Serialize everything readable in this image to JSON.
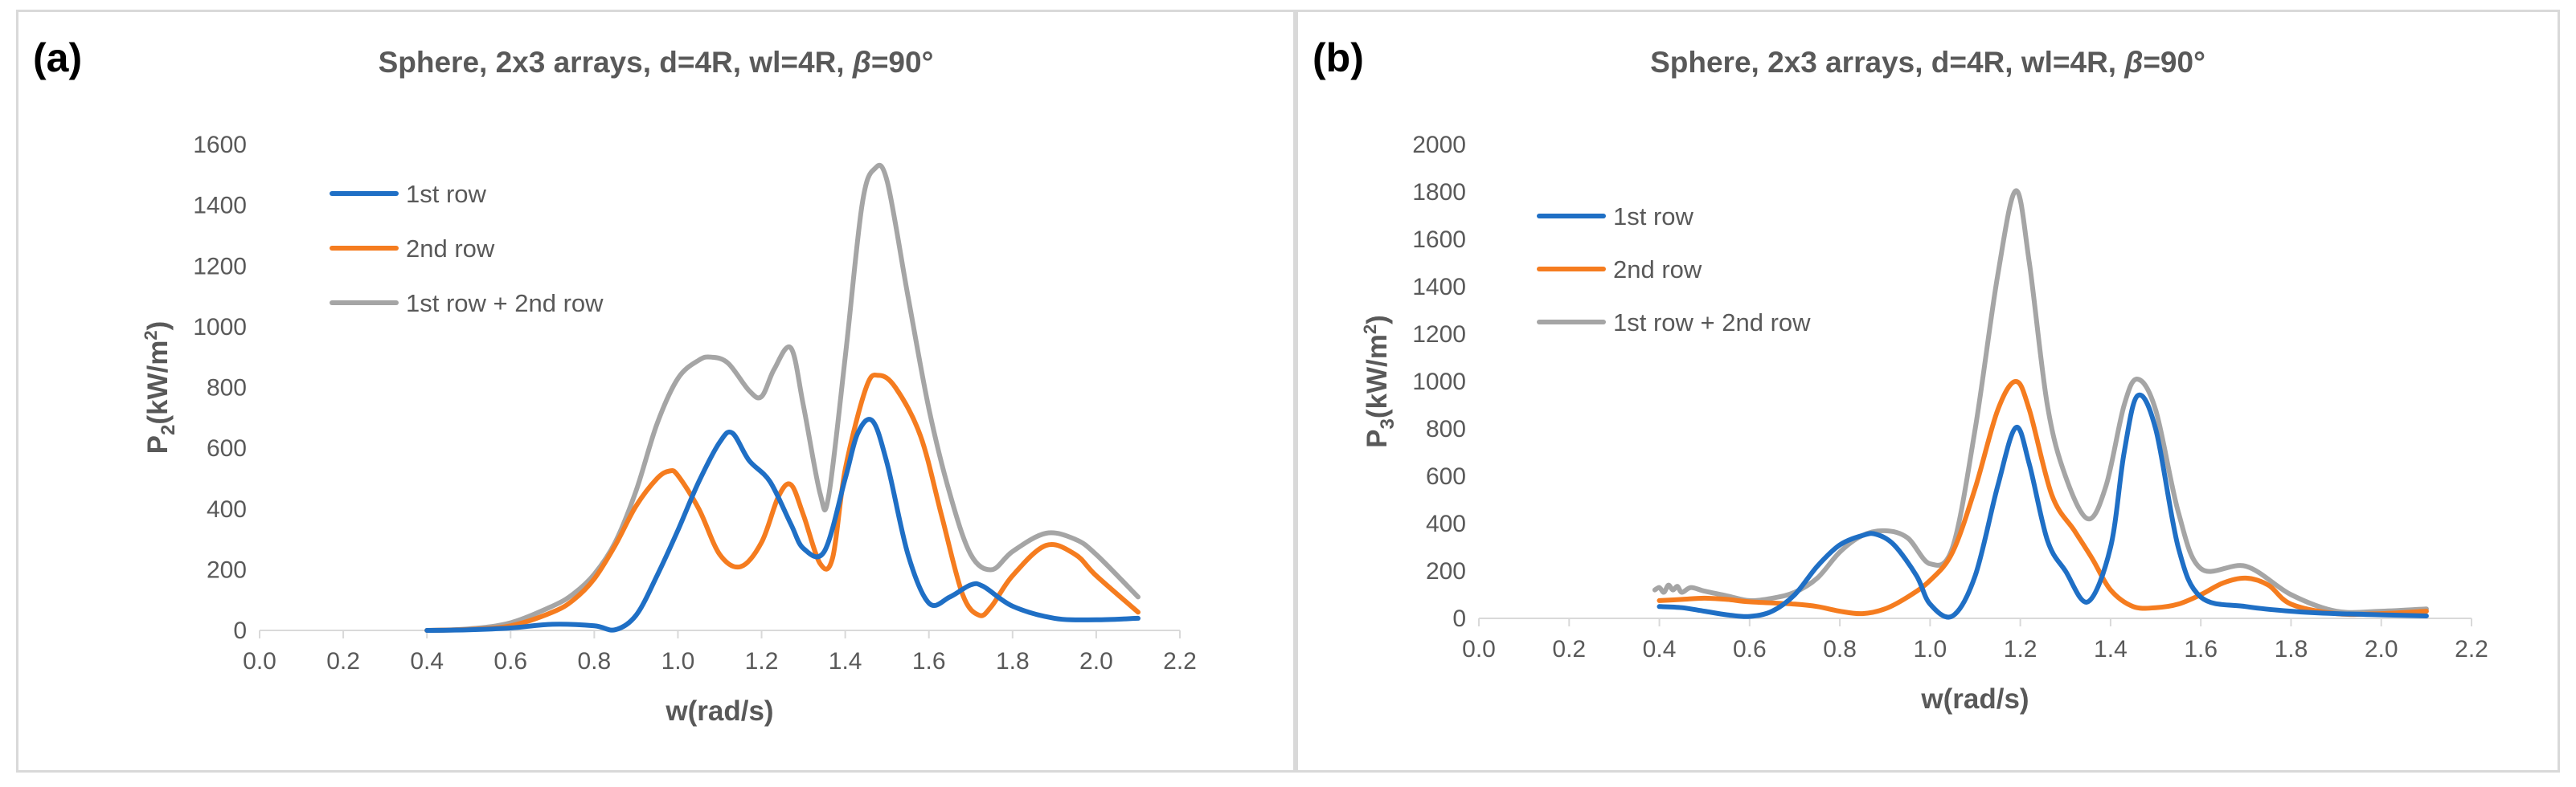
{
  "chart_data": [
    {
      "panel_label": "(a)",
      "type": "line",
      "title_prefix": "Sphere, 2x3 arrays, d=4R, wl=4R, ",
      "title_beta": "β",
      "title_suffix": "=90°",
      "xlabel": "w(rad/s)",
      "ylabel_main": "P",
      "ylabel_sub": "2",
      "ylabel_unit_open": "(kW/m",
      "ylabel_unit_sup": "2",
      "ylabel_unit_close": ")",
      "xlim": [
        0,
        2.2
      ],
      "ylim": [
        0,
        1600
      ],
      "xticks": [
        0,
        0.2,
        0.4,
        0.6,
        0.8,
        1.0,
        1.2,
        1.4,
        1.6,
        1.8,
        2.0,
        2.2
      ],
      "xtick_labels": [
        "0.0",
        "0.2",
        "0.4",
        "0.6",
        "0.8",
        "1.0",
        "1.2",
        "1.4",
        "1.6",
        "1.8",
        "2.0",
        "2.2"
      ],
      "yticks": [
        0,
        200,
        400,
        600,
        800,
        1000,
        1200,
        1400,
        1600
      ],
      "ytick_labels": [
        "0",
        "200",
        "400",
        "600",
        "800",
        "1000",
        "1200",
        "1400",
        "1600"
      ],
      "grid": "none",
      "legend_position": "top-left",
      "series": [
        {
          "name": "1st row",
          "color": "#1f6fc5",
          "x": [
            0.4,
            0.5,
            0.6,
            0.7,
            0.8,
            0.85,
            0.9,
            0.95,
            1.0,
            1.05,
            1.1,
            1.13,
            1.17,
            1.22,
            1.27,
            1.3,
            1.35,
            1.4,
            1.43,
            1.465,
            1.5,
            1.55,
            1.6,
            1.65,
            1.7,
            1.73,
            1.8,
            1.9,
            2.0,
            2.1
          ],
          "y": [
            0,
            2,
            8,
            20,
            15,
            2,
            50,
            180,
            330,
            490,
            620,
            650,
            560,
            490,
            350,
            270,
            260,
            500,
            650,
            690,
            550,
            250,
            90,
            110,
            150,
            145,
            80,
            40,
            35,
            40
          ]
        },
        {
          "name": "2nd row",
          "color": "#f57c1f",
          "x": [
            0.4,
            0.5,
            0.6,
            0.7,
            0.75,
            0.8,
            0.85,
            0.9,
            0.95,
            0.98,
            1.0,
            1.05,
            1.1,
            1.15,
            1.2,
            1.24,
            1.27,
            1.3,
            1.34,
            1.37,
            1.4,
            1.45,
            1.48,
            1.52,
            1.58,
            1.63,
            1.68,
            1.72,
            1.75,
            1.8,
            1.88,
            1.95,
            2.0,
            2.1
          ],
          "y": [
            0,
            3,
            15,
            60,
            100,
            170,
            280,
            410,
            500,
            525,
            510,
            400,
            250,
            210,
            290,
            440,
            480,
            380,
            220,
            240,
            530,
            800,
            840,
            800,
            640,
            380,
            120,
            50,
            80,
            180,
            280,
            250,
            180,
            60
          ]
        },
        {
          "name": "1st row + 2nd row",
          "color": "#a5a5a5",
          "x": [
            0.4,
            0.5,
            0.6,
            0.7,
            0.75,
            0.8,
            0.85,
            0.9,
            0.95,
            1.0,
            1.05,
            1.08,
            1.12,
            1.17,
            1.2,
            1.23,
            1.27,
            1.3,
            1.34,
            1.36,
            1.4,
            1.44,
            1.47,
            1.5,
            1.55,
            1.6,
            1.65,
            1.7,
            1.75,
            1.8,
            1.88,
            1.95,
            2.0,
            2.1
          ],
          "y": [
            0,
            5,
            25,
            80,
            120,
            185,
            290,
            460,
            680,
            830,
            890,
            900,
            880,
            790,
            770,
            860,
            930,
            740,
            450,
            440,
            900,
            1400,
            1520,
            1480,
            1100,
            730,
            450,
            250,
            200,
            260,
            320,
            300,
            250,
            110
          ]
        }
      ]
    },
    {
      "panel_label": "(b)",
      "type": "line",
      "title_prefix": "Sphere, 2x3 arrays, d=4R, wl=4R, ",
      "title_beta": "β",
      "title_suffix": "=90°",
      "xlabel": "w(rad/s)",
      "ylabel_main": "P",
      "ylabel_sub": "3",
      "ylabel_unit_open": "(kW/m",
      "ylabel_unit_sup": "2",
      "ylabel_unit_close": ")",
      "xlim": [
        0,
        2.2
      ],
      "ylim": [
        0,
        2000
      ],
      "xticks": [
        0,
        0.2,
        0.4,
        0.6,
        0.8,
        1.0,
        1.2,
        1.4,
        1.6,
        1.8,
        2.0,
        2.2
      ],
      "xtick_labels": [
        "0.0",
        "0.2",
        "0.4",
        "0.6",
        "0.8",
        "1.0",
        "1.2",
        "1.4",
        "1.6",
        "1.8",
        "2.0",
        "2.2"
      ],
      "yticks": [
        0,
        200,
        400,
        600,
        800,
        1000,
        1200,
        1400,
        1600,
        1800,
        2000
      ],
      "ytick_labels": [
        "0",
        "200",
        "400",
        "600",
        "800",
        "1000",
        "1200",
        "1400",
        "1600",
        "1800",
        "2000"
      ],
      "grid": "none",
      "legend_position": "top-left",
      "series": [
        {
          "name": "1st row",
          "color": "#1f6fc5",
          "x": [
            0.4,
            0.45,
            0.5,
            0.55,
            0.6,
            0.65,
            0.7,
            0.75,
            0.8,
            0.85,
            0.88,
            0.92,
            0.97,
            1.0,
            1.05,
            1.1,
            1.15,
            1.19,
            1.22,
            1.26,
            1.3,
            1.35,
            1.4,
            1.43,
            1.46,
            1.5,
            1.55,
            1.6,
            1.7,
            1.8,
            1.9,
            2.0,
            2.1
          ],
          "y": [
            50,
            45,
            30,
            15,
            8,
            30,
            100,
            220,
            310,
            350,
            355,
            310,
            180,
            60,
            10,
            180,
            560,
            805,
            650,
            330,
            200,
            70,
            300,
            700,
            940,
            800,
            300,
            90,
            50,
            30,
            20,
            15,
            10
          ]
        },
        {
          "name": "2nd row",
          "color": "#f57c1f",
          "x": [
            0.4,
            0.45,
            0.5,
            0.55,
            0.6,
            0.7,
            0.75,
            0.8,
            0.85,
            0.9,
            0.95,
            1.0,
            1.05,
            1.1,
            1.15,
            1.19,
            1.22,
            1.27,
            1.32,
            1.36,
            1.4,
            1.45,
            1.5,
            1.55,
            1.6,
            1.65,
            1.7,
            1.75,
            1.8,
            1.9,
            2.0,
            2.1
          ],
          "y": [
            75,
            80,
            85,
            80,
            70,
            60,
            50,
            30,
            20,
            40,
            90,
            160,
            280,
            550,
            880,
            1000,
            880,
            520,
            370,
            250,
            120,
            50,
            45,
            60,
            100,
            150,
            170,
            140,
            60,
            20,
            20,
            30
          ]
        },
        {
          "name": "1st row + 2nd row",
          "color": "#a5a5a5",
          "x": [
            0.39,
            0.4,
            0.41,
            0.42,
            0.43,
            0.44,
            0.45,
            0.47,
            0.5,
            0.55,
            0.6,
            0.65,
            0.7,
            0.75,
            0.8,
            0.85,
            0.9,
            0.95,
            1.0,
            1.05,
            1.1,
            1.15,
            1.19,
            1.22,
            1.26,
            1.3,
            1.35,
            1.39,
            1.43,
            1.46,
            1.5,
            1.55,
            1.6,
            1.7,
            1.8,
            1.9,
            2.0,
            2.1
          ],
          "y": [
            120,
            130,
            110,
            140,
            120,
            135,
            110,
            130,
            115,
            95,
            75,
            85,
            110,
            170,
            280,
            350,
            370,
            340,
            230,
            300,
            800,
            1450,
            1805,
            1500,
            900,
            600,
            420,
            560,
            900,
            1010,
            880,
            450,
            210,
            220,
            100,
            30,
            30,
            40
          ]
        }
      ]
    }
  ]
}
